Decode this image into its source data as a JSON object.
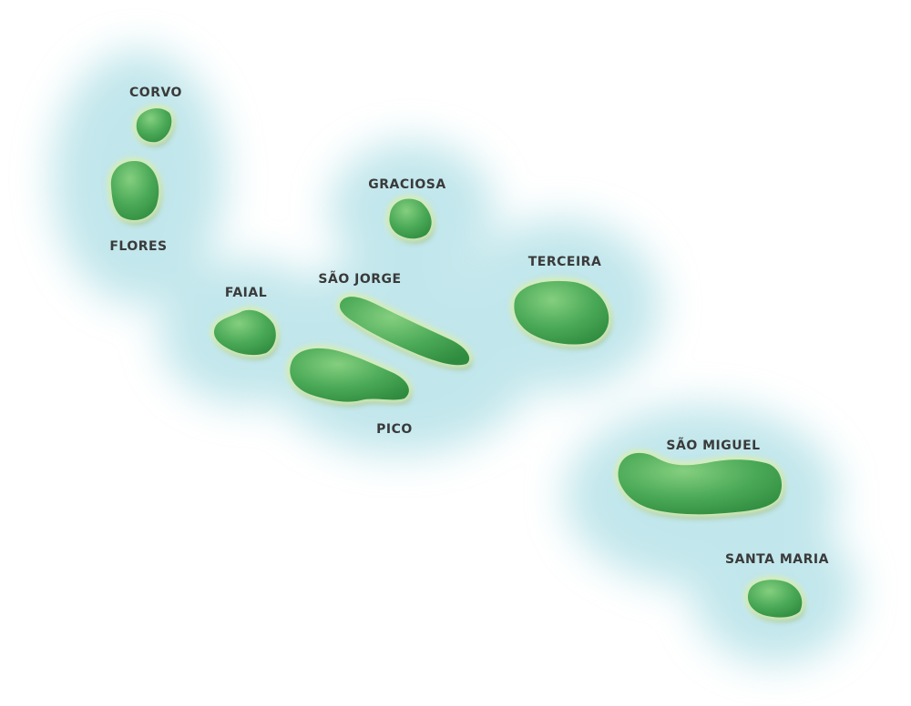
{
  "map": {
    "colors": {
      "background": "#ffffff",
      "sea_glow": "#7fcbd6",
      "island_fill": "#3d9e4a",
      "island_highlight": "#7cc977",
      "island_rim": "#cfe9b4",
      "label": "#3a3a3a"
    },
    "islands": [
      {
        "id": "corvo",
        "label": "CORVO"
      },
      {
        "id": "flores",
        "label": "FLORES"
      },
      {
        "id": "graciosa",
        "label": "GRACIOSA"
      },
      {
        "id": "terceira",
        "label": "TERCEIRA"
      },
      {
        "id": "faial",
        "label": "FAIAL"
      },
      {
        "id": "sao-jorge",
        "label": "SÃO JORGE"
      },
      {
        "id": "pico",
        "label": "PICO"
      },
      {
        "id": "sao-miguel",
        "label": "SÃO MIGUEL"
      },
      {
        "id": "santa-maria",
        "label": "SANTA MARIA"
      }
    ]
  }
}
